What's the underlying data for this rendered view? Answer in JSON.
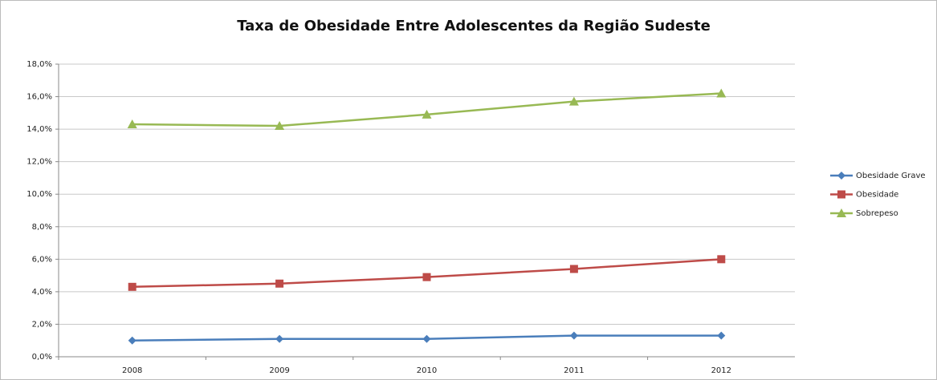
{
  "chart_data": {
    "type": "line",
    "title": "Taxa de Obesidade Entre Adolescentes da Região Sudeste",
    "categories": [
      "2008",
      "2009",
      "2010",
      "2011",
      "2012"
    ],
    "series": [
      {
        "name": "Obesidade Grave",
        "color": "#4a7ebb",
        "marker": "diamond",
        "values": [
          1.0,
          1.1,
          1.1,
          1.3,
          1.3
        ]
      },
      {
        "name": "Obesidade",
        "color": "#be4b48",
        "marker": "square",
        "values": [
          4.3,
          4.5,
          4.9,
          5.4,
          6.0
        ]
      },
      {
        "name": "Sobrepeso",
        "color": "#98b954",
        "marker": "triangle",
        "values": [
          14.3,
          14.2,
          14.9,
          15.7,
          16.2
        ]
      }
    ],
    "ylim": [
      0,
      18
    ],
    "yticks": [
      {
        "value": 0,
        "label": "0,0%"
      },
      {
        "value": 2,
        "label": "2,0%"
      },
      {
        "value": 4,
        "label": "4,0%"
      },
      {
        "value": 6,
        "label": "6,0%"
      },
      {
        "value": 8,
        "label": "8,0%"
      },
      {
        "value": 10,
        "label": "10,0%"
      },
      {
        "value": 12,
        "label": "12,0%"
      },
      {
        "value": 14,
        "label": "14,0%"
      },
      {
        "value": 16,
        "label": "16,0%"
      },
      {
        "value": 18,
        "label": "18,0%"
      }
    ],
    "grid": true,
    "legend": "right"
  }
}
